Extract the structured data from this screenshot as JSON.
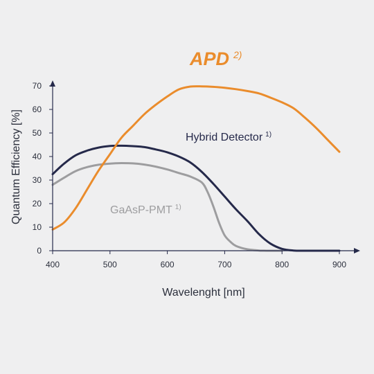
{
  "chart_data": {
    "type": "line",
    "xlabel": "Wavelenght [nm]",
    "ylabel": "Quantum Efficiency [%]",
    "xlim": [
      400,
      920
    ],
    "ylim": [
      0,
      72
    ],
    "x_ticks": [
      400,
      500,
      600,
      700,
      800,
      900
    ],
    "y_ticks": [
      0,
      10,
      20,
      30,
      40,
      50,
      60,
      70
    ],
    "grid": false,
    "series": [
      {
        "name": "APD",
        "superscript": "2)",
        "color": "#ea8c2c",
        "x": [
          400,
          420,
          440,
          460,
          480,
          500,
          520,
          540,
          560,
          580,
          600,
          620,
          640,
          660,
          680,
          700,
          720,
          740,
          760,
          780,
          800,
          820,
          840,
          860,
          880,
          900
        ],
        "y": [
          9,
          12,
          18,
          26,
          34,
          41,
          48,
          53,
          58,
          62,
          65.5,
          68.5,
          69.7,
          69.8,
          69.6,
          69.2,
          68.6,
          67.8,
          66.8,
          65,
          63,
          60.5,
          56.5,
          52,
          47,
          42
        ]
      },
      {
        "name": "Hybrid Detector",
        "superscript": "1)",
        "color": "#25294a",
        "x": [
          400,
          420,
          440,
          460,
          480,
          500,
          520,
          540,
          560,
          580,
          600,
          620,
          640,
          660,
          680,
          700,
          720,
          740,
          760,
          780,
          800,
          820,
          840,
          860,
          880,
          900
        ],
        "y": [
          32.5,
          37,
          40.5,
          42.5,
          43.8,
          44.5,
          44.6,
          44.4,
          44,
          43,
          41.8,
          40,
          37.5,
          33.5,
          28.5,
          23,
          17.5,
          12.5,
          7,
          3,
          0.8,
          0.1,
          0,
          0,
          0,
          0
        ]
      },
      {
        "name": "GaAsP-PMT",
        "superscript": "1)",
        "color": "#9d9d9f",
        "x": [
          400,
          420,
          440,
          460,
          480,
          500,
          520,
          540,
          560,
          580,
          600,
          620,
          640,
          660,
          670,
          680,
          690,
          700,
          710,
          720,
          740,
          760,
          780,
          800
        ],
        "y": [
          28,
          31,
          33.8,
          35.5,
          36.5,
          37,
          37.2,
          37.1,
          36.6,
          35.7,
          34.5,
          33,
          31.5,
          29,
          25,
          19,
          12,
          6.5,
          3.8,
          2,
          0.6,
          0.1,
          0,
          0
        ]
      }
    ]
  }
}
